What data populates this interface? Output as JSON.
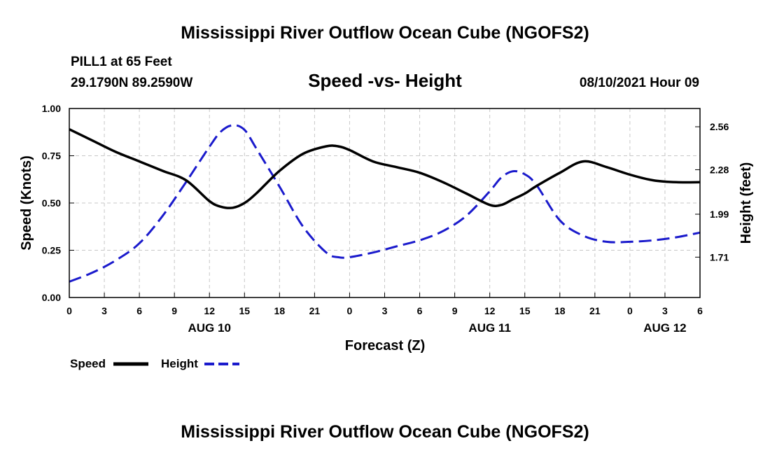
{
  "header": {
    "title": "Mississippi River Outflow Ocean Cube (NGOFS2)",
    "station": "PILL1 at 65 Feet",
    "coords": "29.1790N  89.2590W",
    "subtitle": "Speed -vs- Height",
    "datetime": "08/10/2021 Hour 09"
  },
  "footer": {
    "title": "Mississippi River Outflow Ocean Cube (NGOFS2)"
  },
  "chart_data": {
    "type": "line",
    "xlabel": "Forecast (Z)",
    "ylabel": "Speed (Knots)",
    "y2label": "Height (feet)",
    "xlim": [
      0,
      54
    ],
    "ylim": [
      0,
      1
    ],
    "y2lim": [
      1.447,
      2.679
    ],
    "grid": true,
    "x_ticks": [
      0,
      3,
      6,
      9,
      12,
      15,
      18,
      21,
      24,
      27,
      30,
      33,
      36,
      39,
      42,
      45,
      48,
      51,
      54
    ],
    "x_tick_labels": [
      "0",
      "3",
      "6",
      "9",
      "12",
      "15",
      "18",
      "21",
      "0",
      "3",
      "6",
      "9",
      "12",
      "15",
      "18",
      "21",
      "0",
      "3",
      "6"
    ],
    "y_ticks": [
      0.0,
      0.25,
      0.5,
      0.75,
      1.0
    ],
    "y_tick_labels": [
      "0.00",
      "0.25",
      "0.50",
      "0.75",
      "1.00"
    ],
    "y2_ticks": [
      1.71,
      1.99,
      2.28,
      2.56
    ],
    "y2_tick_labels": [
      "1.71",
      "1.99",
      "2.28",
      "2.56"
    ],
    "date_labels": [
      {
        "x": 12,
        "label": "AUG 10"
      },
      {
        "x": 36,
        "label": "AUG 11"
      },
      {
        "x": 51,
        "label": "AUG 12"
      }
    ],
    "legend_position": "bottom-left",
    "series": [
      {
        "name": "Speed",
        "axis": "left",
        "color": "#000000",
        "style": "solid",
        "x": [
          0,
          2,
          4,
          6,
          8,
          10,
          12,
          13,
          14,
          15,
          16,
          18,
          20,
          22,
          23,
          24,
          26,
          28,
          30,
          32,
          34,
          36,
          37,
          38,
          39,
          40,
          42,
          44,
          46,
          48,
          50,
          52,
          54
        ],
        "values": [
          0.89,
          0.83,
          0.77,
          0.72,
          0.67,
          0.62,
          0.51,
          0.48,
          0.475,
          0.5,
          0.55,
          0.67,
          0.76,
          0.8,
          0.8,
          0.78,
          0.72,
          0.69,
          0.66,
          0.61,
          0.55,
          0.49,
          0.49,
          0.52,
          0.55,
          0.59,
          0.66,
          0.72,
          0.69,
          0.65,
          0.62,
          0.61,
          0.61
        ]
      },
      {
        "name": "Height",
        "axis": "right",
        "color": "#1a1acc",
        "style": "dashed",
        "x": [
          0,
          2,
          4,
          6,
          8,
          10,
          12,
          13,
          14,
          15,
          16,
          18,
          20,
          22,
          23,
          24,
          26,
          28,
          30,
          32,
          34,
          36,
          37,
          38,
          39,
          40,
          42,
          44,
          46,
          48,
          50,
          52,
          54
        ],
        "values": [
          1.55,
          1.61,
          1.69,
          1.8,
          1.98,
          2.2,
          2.43,
          2.53,
          2.57,
          2.54,
          2.42,
          2.17,
          1.91,
          1.74,
          1.71,
          1.71,
          1.74,
          1.78,
          1.82,
          1.88,
          1.98,
          2.14,
          2.23,
          2.27,
          2.25,
          2.18,
          1.95,
          1.85,
          1.81,
          1.81,
          1.82,
          1.84,
          1.87
        ]
      }
    ]
  }
}
